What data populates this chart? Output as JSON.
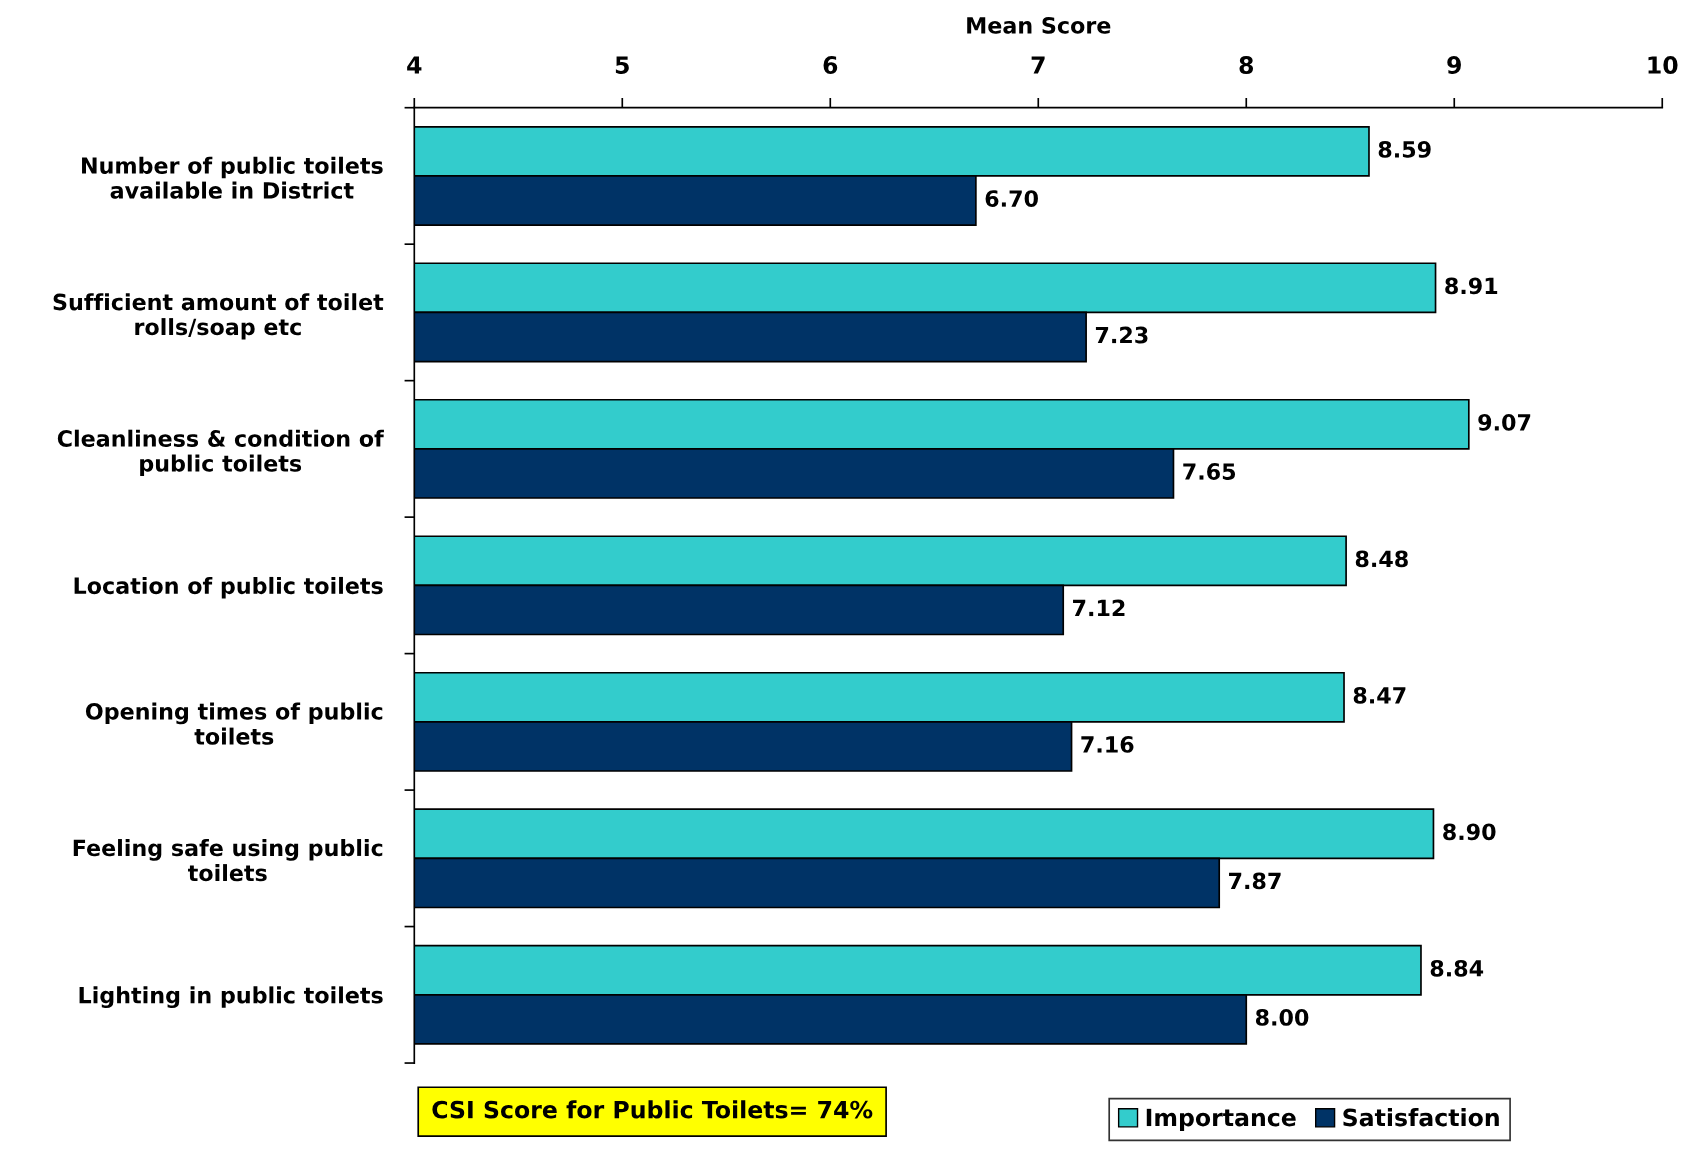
{
  "chart_data": {
    "type": "bar",
    "orientation": "horizontal",
    "xlabel": "Mean Score",
    "categories": [
      "Number of public toilets\navailable in District",
      "Sufficient amount of toilet\nrolls/soap etc",
      "Cleanliness & condition of\npublic toilets",
      "Location of public toilets",
      "Opening times of public\ntoilets",
      "Feeling safe using public\ntoilets",
      "Lighting in public toilets"
    ],
    "series": [
      {
        "name": "Importance",
        "color": "#33cccc",
        "values": [
          8.59,
          8.91,
          9.07,
          8.48,
          8.47,
          8.9,
          8.84
        ],
        "value_labels": [
          "8.59",
          "8.91",
          "9.07",
          "8.48",
          "8.47",
          "8.90",
          "8.84"
        ]
      },
      {
        "name": "Satisfaction",
        "color": "#003366",
        "values": [
          6.7,
          7.23,
          7.65,
          7.12,
          7.16,
          7.87,
          8.0
        ],
        "value_labels": [
          "6.70",
          "7.23",
          "7.65",
          "7.12",
          "7.16",
          "7.87",
          "8.00"
        ]
      }
    ],
    "xlim": [
      4,
      10
    ],
    "xticks": [
      4,
      5,
      6,
      7,
      8,
      9,
      10
    ],
    "grid": false,
    "legend": "bottom right",
    "annotations": [
      "CSI Score for Public Toilets= 74%"
    ]
  }
}
